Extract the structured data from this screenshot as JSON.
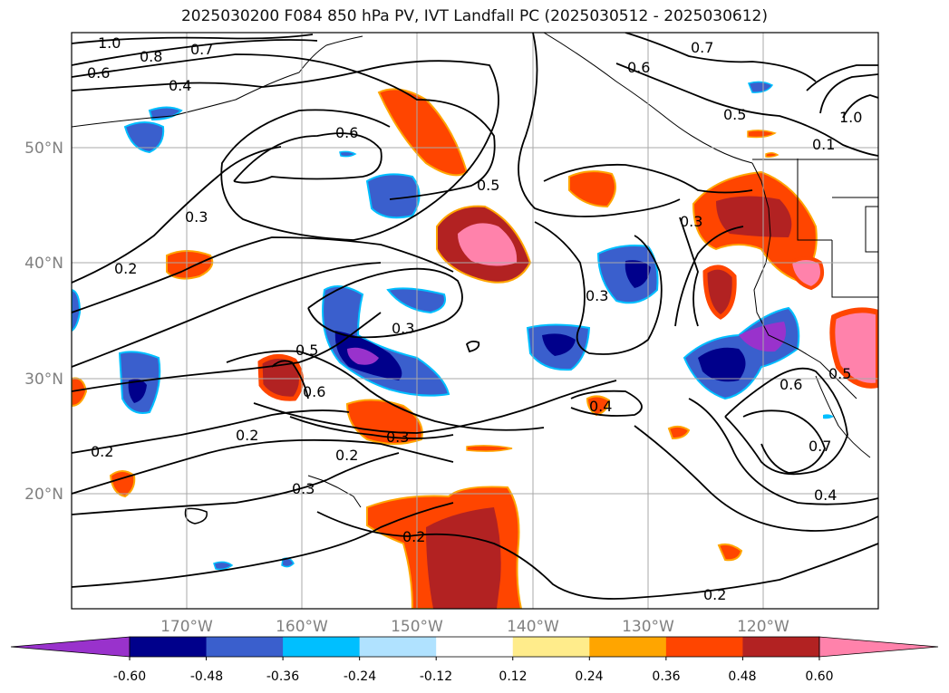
{
  "title": "2025030200 F084 850 hPa PV, IVT Landfall PC (2025030512 - 2025030612)",
  "axes": {
    "lat_labels": [
      "50°N",
      "40°N",
      "30°N",
      "20°N"
    ],
    "lon_labels": [
      "170°W",
      "160°W",
      "150°W",
      "140°W",
      "130°W",
      "120°W"
    ],
    "label_color": "#808080"
  },
  "colorbar": {
    "ticks": [
      "-0.60",
      "-0.48",
      "-0.36",
      "-0.24",
      "-0.12",
      "0.12",
      "0.24",
      "0.36",
      "0.48",
      "0.60"
    ],
    "colors": [
      "#9932cc",
      "#00008b",
      "#3a5fcd",
      "#00bfff",
      "#b0e2ff",
      "#ffffff",
      "#ffec8b",
      "#ffa500",
      "#ff4500",
      "#b22222",
      "#ff82ab"
    ]
  },
  "contour_labels": [
    "1.0",
    "0.8",
    "0.7",
    "0.6",
    "0.4",
    "0.6",
    "0.3",
    "0.2",
    "0.5",
    "0.3",
    "0.6",
    "0.5",
    "0.3",
    "0.2",
    "0.2",
    "0.3",
    "0.2",
    "0.3",
    "0.2",
    "0.4",
    "0.6",
    "0.5",
    "0.7",
    "0.4",
    "0.2",
    "0.7",
    "0.6",
    "0.5",
    "1.0",
    "0.1",
    "0.3"
  ]
}
